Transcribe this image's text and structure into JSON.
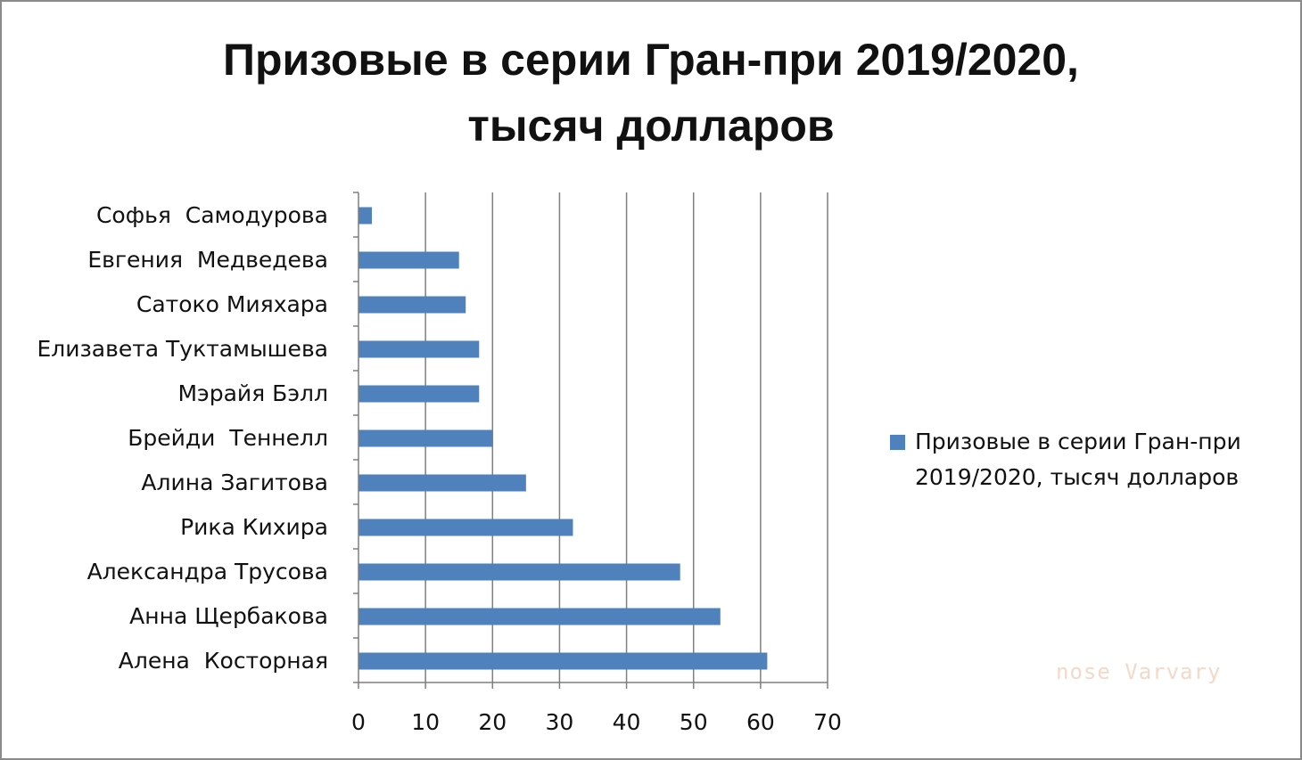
{
  "chart_data": {
    "type": "bar",
    "orientation": "horizontal",
    "title_line1": "Призовые в серии Гран-при 2019/2020,",
    "title_line2": "тысяч долларов",
    "categories": [
      "Софья  Самодурова",
      "Евгения  Медведева",
      "Сатоко Мияхара",
      "Елизавета Туктамышева",
      "Мэрайя Бэлл",
      "Брейди  Теннелл",
      "Алина Загитова",
      "Рика Кихира",
      "Александра Трусова",
      "Анна Щербакова",
      "Алена  Косторная"
    ],
    "series": [
      {
        "name": "Призовые в серии Гран-при 2019/2020, тысяч долларов",
        "color": "#4f81bd",
        "values": [
          2,
          15,
          16,
          18,
          18,
          20,
          25,
          32,
          48,
          54,
          61
        ]
      }
    ],
    "xlim": [
      0,
      70
    ],
    "xticks": [
      0,
      10,
      20,
      30,
      40,
      50,
      60,
      70
    ],
    "grid": "vertical",
    "legend_position": "right",
    "legend_line1": "Призовые в серии Гран-при",
    "legend_line2": "2019/2020, тысяч долларов"
  },
  "watermark": "nose Varvary"
}
